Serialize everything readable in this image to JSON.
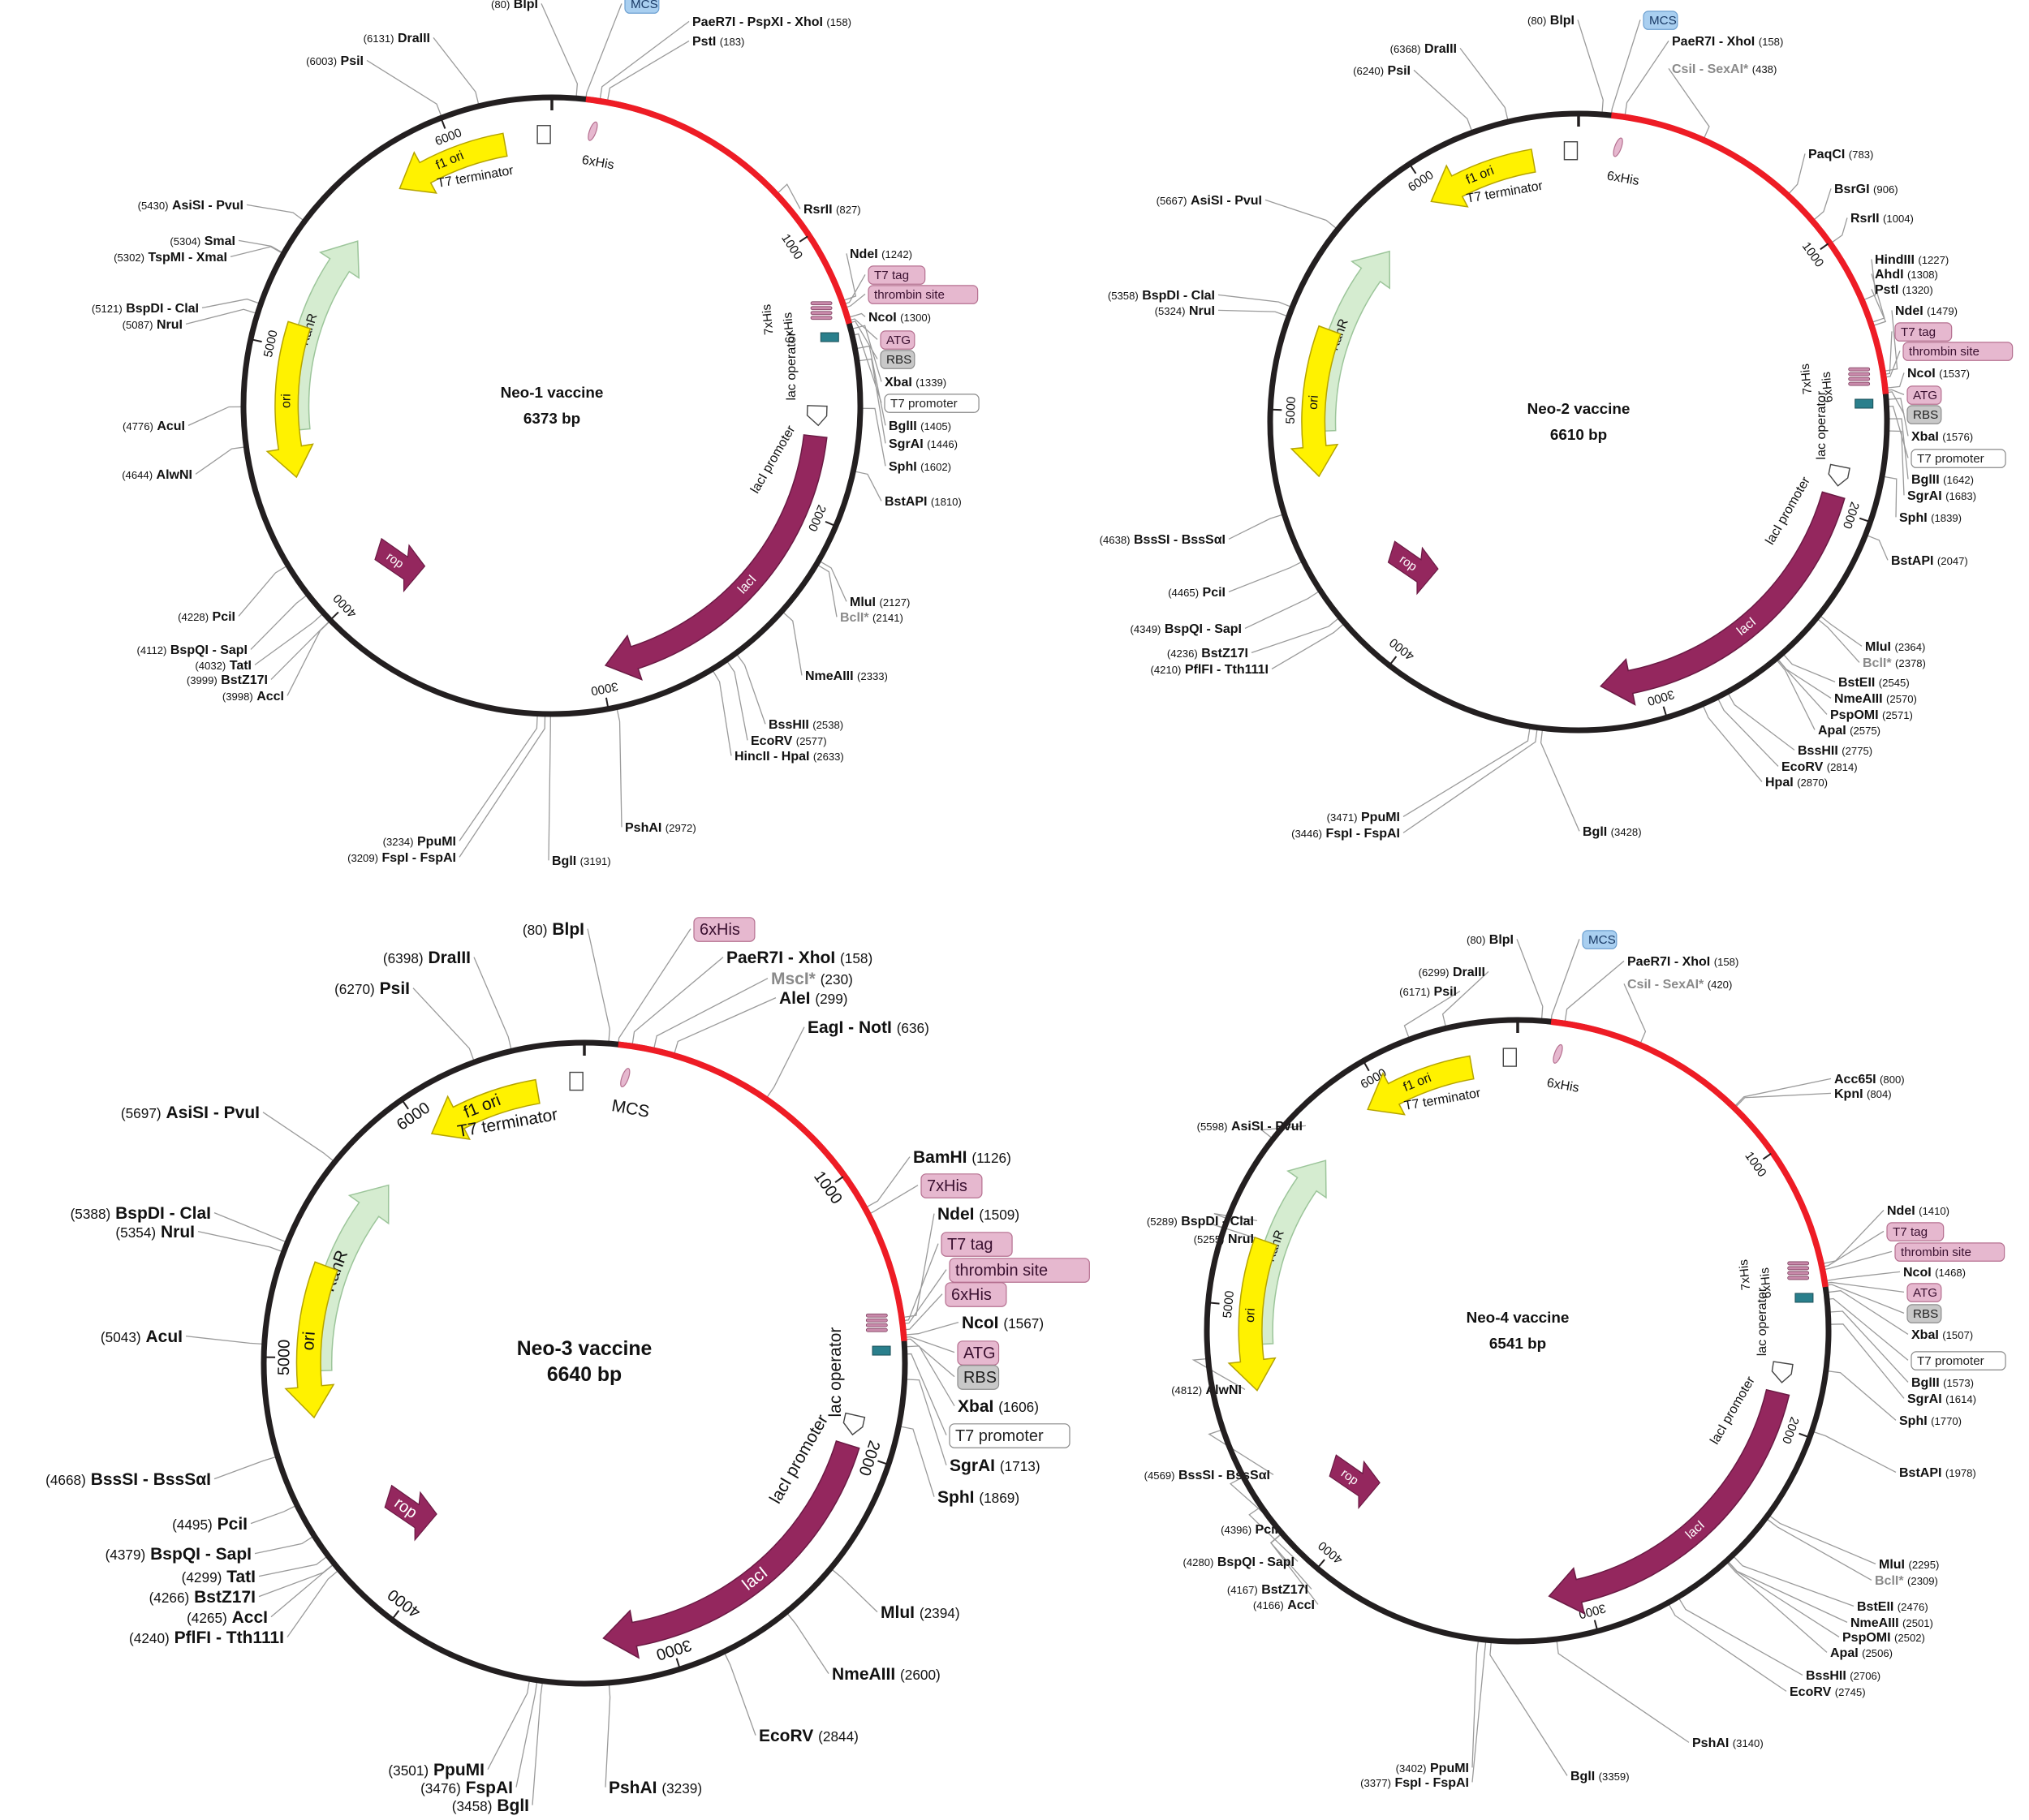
{
  "colors": {
    "backbone": "#231f20",
    "insert": "#ee1c25",
    "kanr": "#d5ecd0",
    "kanr_stroke": "#9cc59a",
    "ori": "#fff200",
    "ori_stroke": "#b5a400",
    "laci": "#94275e",
    "leader": "#9a9a9a",
    "pink_tag": "#e6b8cf",
    "blue_tag": "#a9cff0",
    "gray_tag": "#c8c8c8",
    "rbs_fill": "#2a7f8c"
  },
  "plasmids": [
    {
      "id": "neo1",
      "name": "Neo-1 vaccine",
      "size": "6373 bp",
      "total": 6373,
      "insert_end": 1320,
      "tick_labels": [
        "1000",
        "2000",
        "3000",
        "4000",
        "5000",
        "6000"
      ],
      "features": [
        {
          "label": "f1 ori",
          "icon": "yellow-arrow"
        },
        {
          "label": "T7 terminator",
          "icon": "white-box"
        },
        {
          "label": "6xHis",
          "icon": "pink-tag"
        },
        {
          "label": "KanR",
          "icon": "green-arrow"
        },
        {
          "label": "ori",
          "icon": "yellow-arrow"
        },
        {
          "label": "rop",
          "icon": "purple-arrow"
        },
        {
          "label": "lacI",
          "icon": "purple-arrow"
        },
        {
          "label": "lacI promoter",
          "icon": "white-arrow"
        },
        {
          "label": "lac operator",
          "icon": "text"
        },
        {
          "label": "7xHis",
          "icon": "pink-tag"
        },
        {
          "label": "6xHis",
          "icon": "pink-tag"
        }
      ],
      "sites": [
        {
          "name": "BlpI",
          "pos": "(80)"
        },
        {
          "name": "MCS",
          "pos": ""
        },
        {
          "name": "PaeR7I - PspXI - XhoI",
          "pos": "(158)"
        },
        {
          "name": "PstI",
          "pos": "(183)"
        },
        {
          "name": "RsrII",
          "pos": "(827)"
        },
        {
          "name": "NdeI",
          "pos": "(1242)"
        },
        {
          "name": "T7 tag",
          "pos": ""
        },
        {
          "name": "thrombin site",
          "pos": ""
        },
        {
          "name": "NcoI",
          "pos": "(1300)"
        },
        {
          "name": "ATG",
          "pos": ""
        },
        {
          "name": "RBS",
          "pos": ""
        },
        {
          "name": "XbaI",
          "pos": "(1339)"
        },
        {
          "name": "T7 promoter",
          "pos": ""
        },
        {
          "name": "BglII",
          "pos": "(1405)"
        },
        {
          "name": "SgrAI",
          "pos": "(1446)"
        },
        {
          "name": "SphI",
          "pos": "(1602)"
        },
        {
          "name": "BstAPI",
          "pos": "(1810)"
        },
        {
          "name": "MluI",
          "pos": "(2127)"
        },
        {
          "name": "BclI*",
          "pos": "(2141)"
        },
        {
          "name": "NmeAIII",
          "pos": "(2333)"
        },
        {
          "name": "BssHII",
          "pos": "(2538)"
        },
        {
          "name": "EcoRV",
          "pos": "(2577)"
        },
        {
          "name": "HincII - HpaI",
          "pos": "(2633)"
        },
        {
          "name": "PshAI",
          "pos": "(2972)"
        },
        {
          "name": "BglI",
          "pos": "(3191)"
        },
        {
          "name": "PpuMI",
          "pos": "(3234)"
        },
        {
          "name": "FspI - FspAI",
          "pos": "(3209)"
        },
        {
          "name": "AccI",
          "pos": "(3998)"
        },
        {
          "name": "BstZ17I",
          "pos": "(3999)"
        },
        {
          "name": "TatI",
          "pos": "(4032)"
        },
        {
          "name": "BspQI - SapI",
          "pos": "(4112)"
        },
        {
          "name": "PciI",
          "pos": "(4228)"
        },
        {
          "name": "AlwNI",
          "pos": "(4644)"
        },
        {
          "name": "AcuI",
          "pos": "(4776)"
        },
        {
          "name": "NruI",
          "pos": "(5087)"
        },
        {
          "name": "BspDI - ClaI",
          "pos": "(5121)"
        },
        {
          "name": "TspMI - XmaI",
          "pos": "(5302)"
        },
        {
          "name": "SmaI",
          "pos": "(5304)"
        },
        {
          "name": "AsiSI - PvuI",
          "pos": "(5430)"
        },
        {
          "name": "PsiI",
          "pos": "(6003)"
        },
        {
          "name": "DraIII",
          "pos": "(6131)"
        }
      ]
    },
    {
      "id": "neo2",
      "name": "Neo-2 vaccine",
      "size": "6610 bp",
      "total": 6610,
      "insert_end": 1557,
      "tick_labels": [
        "1000",
        "2000",
        "3000",
        "4000",
        "5000",
        "6000"
      ],
      "features": [
        {
          "label": "f1 ori",
          "icon": "yellow-arrow"
        },
        {
          "label": "T7 terminator",
          "icon": "white-box"
        },
        {
          "label": "6xHis",
          "icon": "pink-tag"
        },
        {
          "label": "KanR",
          "icon": "green-arrow"
        },
        {
          "label": "ori",
          "icon": "yellow-arrow"
        },
        {
          "label": "rop",
          "icon": "purple-arrow"
        },
        {
          "label": "lacI",
          "icon": "purple-arrow"
        },
        {
          "label": "lacI promoter",
          "icon": "white-arrow"
        },
        {
          "label": "lac operator",
          "icon": "text"
        },
        {
          "label": "7xHis",
          "icon": "pink-tag"
        },
        {
          "label": "6xHis",
          "icon": "pink-tag"
        }
      ],
      "sites": [
        {
          "name": "BlpI",
          "pos": "(80)"
        },
        {
          "name": "MCS",
          "pos": ""
        },
        {
          "name": "PaeR7I - XhoI",
          "pos": "(158)"
        },
        {
          "name": "CsiI - SexAI*",
          "pos": "(438)"
        },
        {
          "name": "PaqCI",
          "pos": "(783)"
        },
        {
          "name": "BsrGI",
          "pos": "(906)"
        },
        {
          "name": "RsrII",
          "pos": "(1004)"
        },
        {
          "name": "HindIII",
          "pos": "(1227)"
        },
        {
          "name": "AhdI",
          "pos": "(1308)"
        },
        {
          "name": "PstI",
          "pos": "(1320)"
        },
        {
          "name": "NdeI",
          "pos": "(1479)"
        },
        {
          "name": "T7 tag",
          "pos": ""
        },
        {
          "name": "thrombin site",
          "pos": ""
        },
        {
          "name": "NcoI",
          "pos": "(1537)"
        },
        {
          "name": "ATG",
          "pos": ""
        },
        {
          "name": "RBS",
          "pos": ""
        },
        {
          "name": "XbaI",
          "pos": "(1576)"
        },
        {
          "name": "T7 promoter",
          "pos": ""
        },
        {
          "name": "BglII",
          "pos": "(1642)"
        },
        {
          "name": "SgrAI",
          "pos": "(1683)"
        },
        {
          "name": "SphI",
          "pos": "(1839)"
        },
        {
          "name": "BstAPI",
          "pos": "(2047)"
        },
        {
          "name": "MluI",
          "pos": "(2364)"
        },
        {
          "name": "BclI*",
          "pos": "(2378)"
        },
        {
          "name": "BstEII",
          "pos": "(2545)"
        },
        {
          "name": "NmeAIII",
          "pos": "(2570)"
        },
        {
          "name": "PspOMI",
          "pos": "(2571)"
        },
        {
          "name": "ApaI",
          "pos": "(2575)"
        },
        {
          "name": "BssHII",
          "pos": "(2775)"
        },
        {
          "name": "EcoRV",
          "pos": "(2814)"
        },
        {
          "name": "HpaI",
          "pos": "(2870)"
        },
        {
          "name": "BglI",
          "pos": "(3428)"
        },
        {
          "name": "PpuMI",
          "pos": "(3471)"
        },
        {
          "name": "FspI - FspAI",
          "pos": "(3446)"
        },
        {
          "name": "PflFI - Tth111I",
          "pos": "(4210)"
        },
        {
          "name": "BstZ17I",
          "pos": "(4236)"
        },
        {
          "name": "BspQI - SapI",
          "pos": "(4349)"
        },
        {
          "name": "PciI",
          "pos": "(4465)"
        },
        {
          "name": "BssSI - BssSαI",
          "pos": "(4638)"
        },
        {
          "name": "NruI",
          "pos": "(5324)"
        },
        {
          "name": "BspDI - ClaI",
          "pos": "(5358)"
        },
        {
          "name": "AsiSI - PvuI",
          "pos": "(5667)"
        },
        {
          "name": "PsiI",
          "pos": "(6240)"
        },
        {
          "name": "DraIII",
          "pos": "(6368)"
        }
      ]
    },
    {
      "id": "neo3",
      "name": "Neo-3 vaccine",
      "size": "6640 bp",
      "total": 6640,
      "insert_end": 1587,
      "tick_labels": [
        "1000",
        "2000",
        "3000",
        "4000",
        "5000",
        "6000"
      ],
      "features": [
        {
          "label": "f1 ori",
          "icon": "yellow-arrow"
        },
        {
          "label": "T7 terminator",
          "icon": "white-box"
        },
        {
          "label": "MCS",
          "icon": "pink-tag"
        },
        {
          "label": "KanR",
          "icon": "green-arrow"
        },
        {
          "label": "ori",
          "icon": "yellow-arrow"
        },
        {
          "label": "rop",
          "icon": "purple-arrow"
        },
        {
          "label": "lacI",
          "icon": "purple-arrow"
        },
        {
          "label": "lacI promoter",
          "icon": "white-arrow"
        },
        {
          "label": "lac operator",
          "icon": "text"
        }
      ],
      "sites": [
        {
          "name": "BlpI",
          "pos": "(80)"
        },
        {
          "name": "6xHis",
          "pos": ""
        },
        {
          "name": "PaeR7I - XhoI",
          "pos": "(158)"
        },
        {
          "name": "MscI*",
          "pos": "(230)"
        },
        {
          "name": "AleI",
          "pos": "(299)"
        },
        {
          "name": "EagI - NotI",
          "pos": "(636)"
        },
        {
          "name": "BamHI",
          "pos": "(1126)"
        },
        {
          "name": "7xHis",
          "pos": ""
        },
        {
          "name": "NdeI",
          "pos": "(1509)"
        },
        {
          "name": "T7 tag",
          "pos": ""
        },
        {
          "name": "thrombin site",
          "pos": ""
        },
        {
          "name": "6xHis",
          "pos": ""
        },
        {
          "name": "NcoI",
          "pos": "(1567)"
        },
        {
          "name": "ATG",
          "pos": ""
        },
        {
          "name": "RBS",
          "pos": ""
        },
        {
          "name": "XbaI",
          "pos": "(1606)"
        },
        {
          "name": "T7 promoter",
          "pos": ""
        },
        {
          "name": "SgrAI",
          "pos": "(1713)"
        },
        {
          "name": "SphI",
          "pos": "(1869)"
        },
        {
          "name": "MluI",
          "pos": "(2394)"
        },
        {
          "name": "NmeAIII",
          "pos": "(2600)"
        },
        {
          "name": "EcoRV",
          "pos": "(2844)"
        },
        {
          "name": "PshAI",
          "pos": "(3239)"
        },
        {
          "name": "BglI",
          "pos": "(3458)"
        },
        {
          "name": "FspAI",
          "pos": "(3476)"
        },
        {
          "name": "PpuMI",
          "pos": "(3501)"
        },
        {
          "name": "PflFI - Tth111I",
          "pos": "(4240)"
        },
        {
          "name": "AccI",
          "pos": "(4265)"
        },
        {
          "name": "BstZ17I",
          "pos": "(4266)"
        },
        {
          "name": "TatI",
          "pos": "(4299)"
        },
        {
          "name": "BspQI - SapI",
          "pos": "(4379)"
        },
        {
          "name": "PciI",
          "pos": "(4495)"
        },
        {
          "name": "BssSI - BssSαI",
          "pos": "(4668)"
        },
        {
          "name": "AcuI",
          "pos": "(5043)"
        },
        {
          "name": "NruI",
          "pos": "(5354)"
        },
        {
          "name": "BspDI - ClaI",
          "pos": "(5388)"
        },
        {
          "name": "AsiSI - PvuI",
          "pos": "(5697)"
        },
        {
          "name": "PsiI",
          "pos": "(6270)"
        },
        {
          "name": "DraIII",
          "pos": "(6398)"
        }
      ]
    },
    {
      "id": "neo4",
      "name": "Neo-4 vaccine",
      "size": "6541 bp",
      "total": 6541,
      "insert_end": 1488,
      "tick_labels": [
        "1000",
        "2000",
        "3000",
        "4000",
        "5000",
        "6000"
      ],
      "features": [
        {
          "label": "f1 ori",
          "icon": "yellow-arrow"
        },
        {
          "label": "T7 terminator",
          "icon": "white-box"
        },
        {
          "label": "6xHis",
          "icon": "pink-tag"
        },
        {
          "label": "KanR",
          "icon": "green-arrow"
        },
        {
          "label": "ori",
          "icon": "yellow-arrow"
        },
        {
          "label": "rop",
          "icon": "purple-arrow"
        },
        {
          "label": "lacI",
          "icon": "purple-arrow"
        },
        {
          "label": "lacI promoter",
          "icon": "white-arrow"
        },
        {
          "label": "lac operator",
          "icon": "text"
        },
        {
          "label": "7xHis",
          "icon": "pink-tag"
        },
        {
          "label": "6xHis",
          "icon": "pink-tag"
        }
      ],
      "sites": [
        {
          "name": "BlpI",
          "pos": "(80)"
        },
        {
          "name": "MCS",
          "pos": ""
        },
        {
          "name": "PaeR7I - XhoI",
          "pos": "(158)"
        },
        {
          "name": "CsiI - SexAI*",
          "pos": "(420)"
        },
        {
          "name": "Acc65I",
          "pos": "(800)"
        },
        {
          "name": "KpnI",
          "pos": "(804)"
        },
        {
          "name": "NdeI",
          "pos": "(1410)"
        },
        {
          "name": "T7 tag",
          "pos": ""
        },
        {
          "name": "thrombin site",
          "pos": ""
        },
        {
          "name": "NcoI",
          "pos": "(1468)"
        },
        {
          "name": "ATG",
          "pos": ""
        },
        {
          "name": "RBS",
          "pos": ""
        },
        {
          "name": "XbaI",
          "pos": "(1507)"
        },
        {
          "name": "T7 promoter",
          "pos": ""
        },
        {
          "name": "BglII",
          "pos": "(1573)"
        },
        {
          "name": "SgrAI",
          "pos": "(1614)"
        },
        {
          "name": "SphI",
          "pos": "(1770)"
        },
        {
          "name": "BstAPI",
          "pos": "(1978)"
        },
        {
          "name": "MluI",
          "pos": "(2295)"
        },
        {
          "name": "BclI*",
          "pos": "(2309)"
        },
        {
          "name": "BstEII",
          "pos": "(2476)"
        },
        {
          "name": "NmeAIII",
          "pos": "(2501)"
        },
        {
          "name": "PspOMI",
          "pos": "(2502)"
        },
        {
          "name": "ApaI",
          "pos": "(2506)"
        },
        {
          "name": "BssHII",
          "pos": "(2706)"
        },
        {
          "name": "EcoRV",
          "pos": "(2745)"
        },
        {
          "name": "PshAI",
          "pos": "(3140)"
        },
        {
          "name": "BglI",
          "pos": "(3359)"
        },
        {
          "name": "PpuMI",
          "pos": "(3402)"
        },
        {
          "name": "FspI - FspAI",
          "pos": "(3377)"
        },
        {
          "name": "AccI",
          "pos": "(4166)"
        },
        {
          "name": "BstZ17I",
          "pos": "(4167)"
        },
        {
          "name": "BspQI - SapI",
          "pos": "(4280)"
        },
        {
          "name": "PciI",
          "pos": "(4396)"
        },
        {
          "name": "BssSI - BssSαI",
          "pos": "(4569)"
        },
        {
          "name": "AlwNI",
          "pos": "(4812)"
        },
        {
          "name": "NruI",
          "pos": "(5255)"
        },
        {
          "name": "BspDI - ClaI",
          "pos": "(5289)"
        },
        {
          "name": "AsiSI - PvuI",
          "pos": "(5598)"
        },
        {
          "name": "PsiI",
          "pos": "(6171)"
        },
        {
          "name": "DraIII",
          "pos": "(6299)"
        }
      ]
    }
  ]
}
